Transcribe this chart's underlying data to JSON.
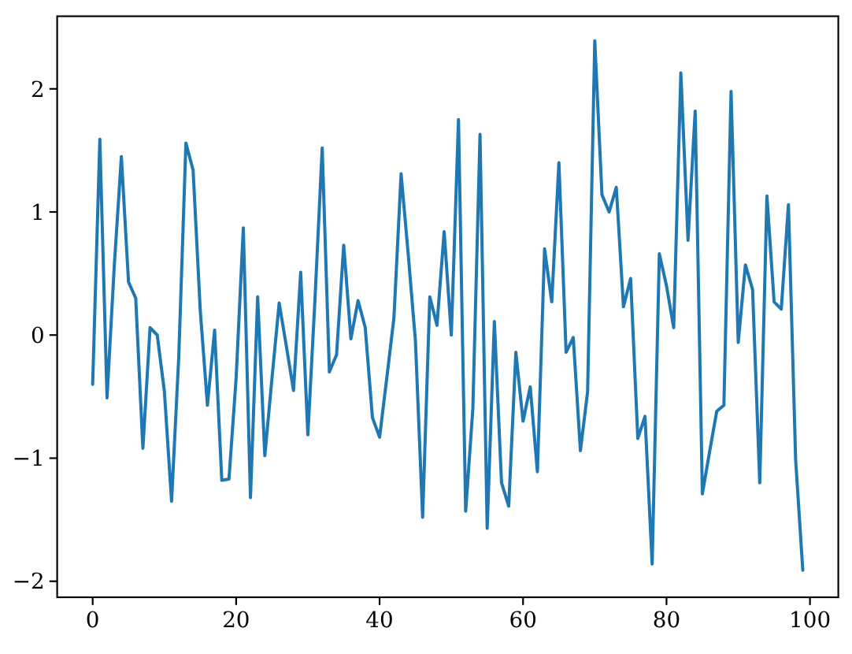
{
  "chart_data": {
    "type": "line",
    "x": [
      0,
      1,
      2,
      3,
      4,
      5,
      6,
      7,
      8,
      9,
      10,
      11,
      12,
      13,
      14,
      15,
      16,
      17,
      18,
      19,
      20,
      21,
      22,
      23,
      24,
      25,
      26,
      27,
      28,
      29,
      30,
      31,
      32,
      33,
      34,
      35,
      36,
      37,
      38,
      39,
      40,
      41,
      42,
      43,
      44,
      45,
      46,
      47,
      48,
      49,
      50,
      51,
      52,
      53,
      54,
      55,
      56,
      57,
      58,
      59,
      60,
      61,
      62,
      63,
      64,
      65,
      66,
      67,
      68,
      69,
      70,
      71,
      72,
      73,
      74,
      75,
      76,
      77,
      78,
      79,
      80,
      81,
      82,
      83,
      84,
      85,
      86,
      87,
      88,
      89,
      90,
      91,
      92,
      93,
      94,
      95,
      96,
      97,
      98,
      99
    ],
    "series": [
      {
        "color": "#1f77b4",
        "values": [
          -0.4,
          1.59,
          -0.51,
          0.55,
          1.45,
          0.43,
          0.3,
          -0.92,
          0.06,
          0.0,
          -0.46,
          -1.35,
          -0.18,
          1.56,
          1.34,
          0.2,
          -0.57,
          0.04,
          -1.18,
          -1.17,
          -0.35,
          0.87,
          -1.32,
          0.31,
          -0.98,
          -0.35,
          0.26,
          -0.09,
          -0.45,
          0.51,
          -0.81,
          0.3,
          1.52,
          -0.3,
          -0.16,
          0.73,
          -0.03,
          0.28,
          0.06,
          -0.67,
          -0.83,
          -0.35,
          0.14,
          1.31,
          0.65,
          -0.05,
          -1.48,
          0.31,
          0.08,
          0.84,
          0.0,
          1.75,
          -1.43,
          -0.6,
          1.63,
          -1.57,
          0.11,
          -1.2,
          -1.39,
          -0.14,
          -0.7,
          -0.42,
          -1.11,
          0.7,
          0.27,
          1.4,
          -0.14,
          -0.02,
          -0.94,
          -0.46,
          2.39,
          1.14,
          1.0,
          1.2,
          0.23,
          0.46,
          -0.84,
          -0.66,
          -1.86,
          0.66,
          0.4,
          0.06,
          2.13,
          0.77,
          1.82,
          -1.29,
          -0.95,
          -0.62,
          -0.57,
          1.98,
          -0.06,
          0.57,
          0.37,
          -1.2,
          1.13,
          0.27,
          0.21,
          1.06,
          -1.01,
          -1.91
        ]
      }
    ],
    "xlim": [
      -4.95,
      103.95
    ],
    "ylim": [
      -2.13,
      2.59
    ],
    "xticks": [
      0,
      20,
      40,
      60,
      80,
      100
    ],
    "yticks": [
      {
        "value": -2,
        "label": "−2"
      },
      {
        "value": -1,
        "label": "−1"
      },
      0,
      1,
      2
    ]
  }
}
